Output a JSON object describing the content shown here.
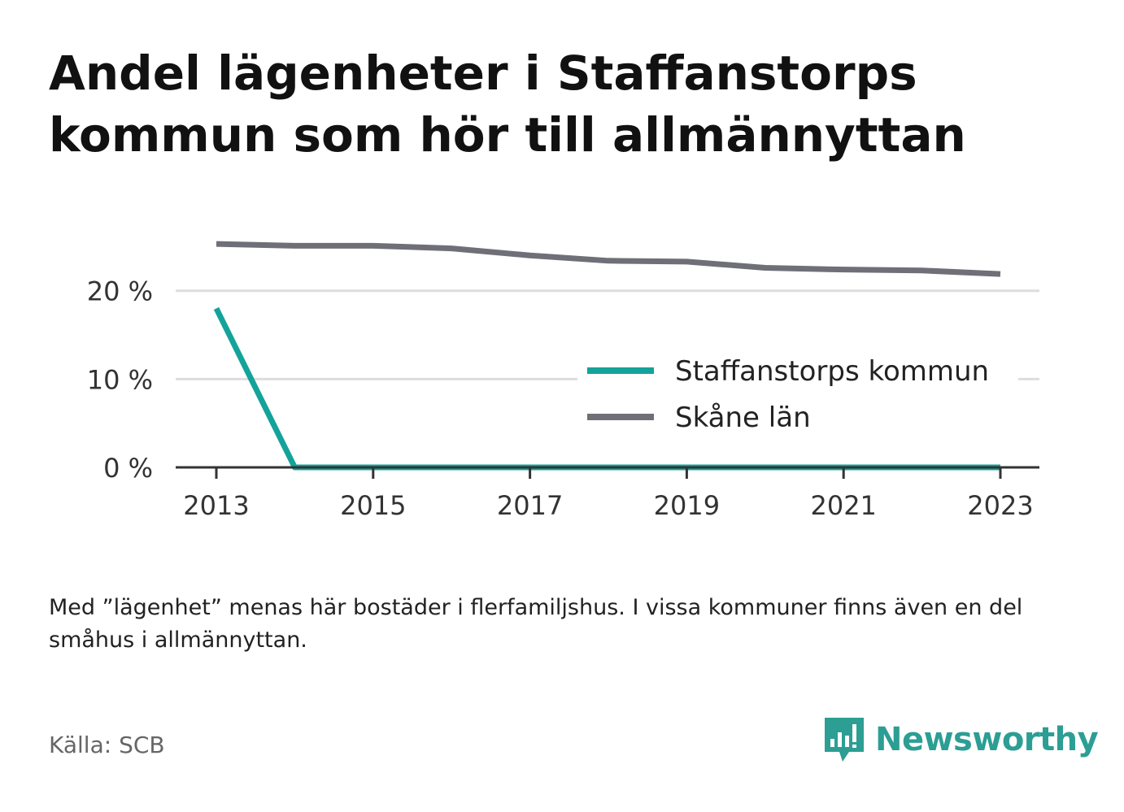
{
  "title": "Andel lägenheter i Staffanstorps kommun som hör till allmännyttan",
  "note": "Med ”lägenhet” menas här bostäder i flerfamiljshus. I vissa kommuner finns även en del småhus i allmännyttan.",
  "source": "Källa: SCB",
  "brand": {
    "name": "Newsworthy",
    "icon": "newsworthy-logo-icon",
    "color": "#2c9e94"
  },
  "chart_data": {
    "type": "line",
    "title": "Andel lägenheter i Staffanstorps kommun som hör till allmännyttan",
    "xlabel": "",
    "ylabel": "",
    "x": [
      2013,
      2014,
      2015,
      2016,
      2017,
      2018,
      2019,
      2020,
      2021,
      2022,
      2023
    ],
    "x_ticks": [
      "2013",
      "2015",
      "2017",
      "2019",
      "2021",
      "2023"
    ],
    "y_ticks": [
      "0 %",
      "10 %",
      "20 %"
    ],
    "y_tick_values": [
      0,
      10,
      20
    ],
    "ylim": [
      0,
      25.5
    ],
    "grid": true,
    "legend_position": "right",
    "series": [
      {
        "name": "Staffanstorps kommun",
        "color": "#14a39a",
        "values": [
          18.0,
          0.0,
          0.0,
          0.0,
          0.0,
          0.0,
          0.0,
          0.0,
          0.0,
          0.0,
          0.0
        ]
      },
      {
        "name": "Skåne län",
        "color": "#6f6f78",
        "values": [
          25.3,
          25.1,
          25.1,
          24.8,
          24.0,
          23.4,
          23.3,
          22.6,
          22.4,
          22.3,
          21.9
        ]
      }
    ]
  }
}
